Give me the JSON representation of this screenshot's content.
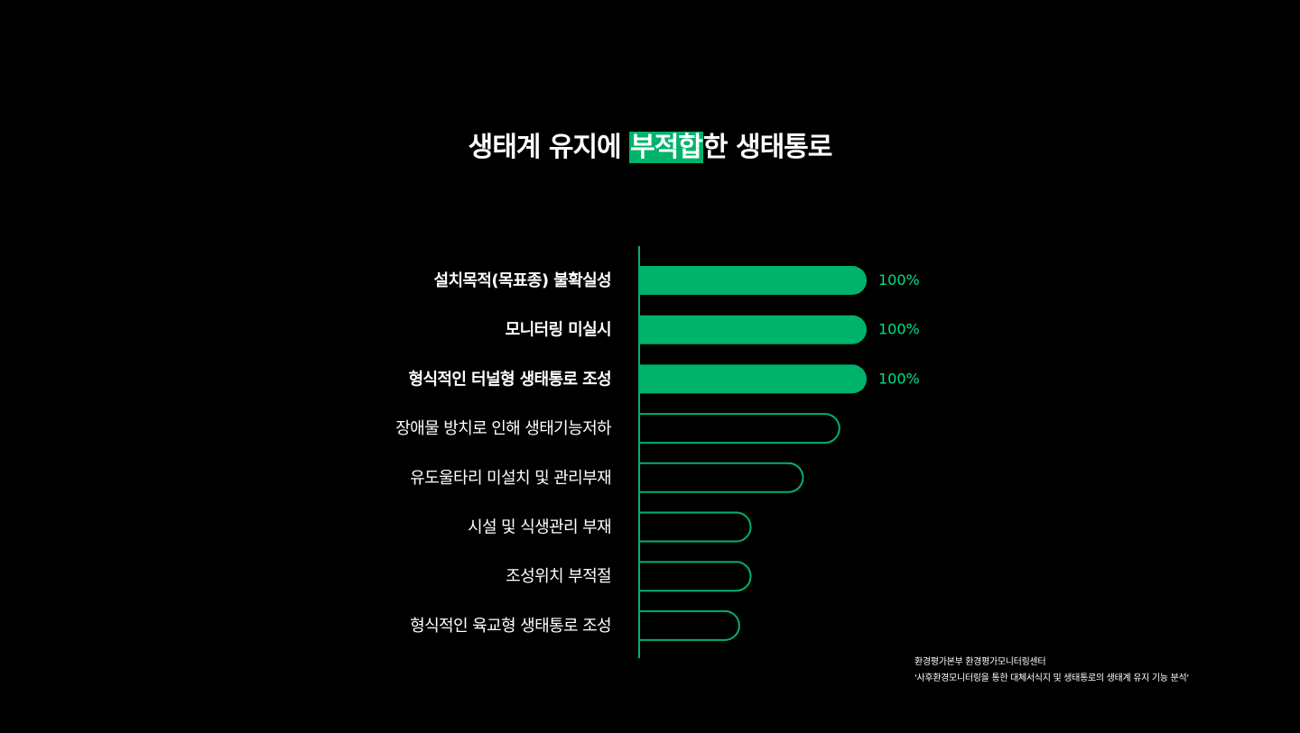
{
  "title": {
    "before": "생태계 유지에 ",
    "highlight": "부적합",
    "after": "한 생태통로"
  },
  "colors": {
    "background": "#000000",
    "accent": "#00b36b",
    "label_text": "#00e08a",
    "text": "#ffffff"
  },
  "chart_data": {
    "type": "bar",
    "orientation": "horizontal",
    "categories": [
      "설치목적(목표종) 불확실성",
      "모니터링 미실시",
      "형식적인 터널형 생태통로 조성",
      "장애물 방치로 인해 생태기능저하",
      "유도울타리 미설치 및 관리부재",
      "시설 및 식생관리 부재",
      "조성위치 부적절",
      "형식적인 육교형 생태통로 조성"
    ],
    "values": [
      100,
      100,
      100,
      88,
      72,
      49,
      49,
      44
    ],
    "data_labels": [
      "100%",
      "100%",
      "100%",
      "",
      "",
      "",
      "",
      ""
    ],
    "highlighted": [
      true,
      true,
      true,
      false,
      false,
      false,
      false,
      false
    ],
    "xlim": [
      0,
      100
    ]
  },
  "source": {
    "line1": "환경평가본부  환경평가모니터링센터",
    "line2": "'사후환경모니터링을 통한 대체서식지 및 생태통로의 생태계 유지 기능 분석'"
  }
}
